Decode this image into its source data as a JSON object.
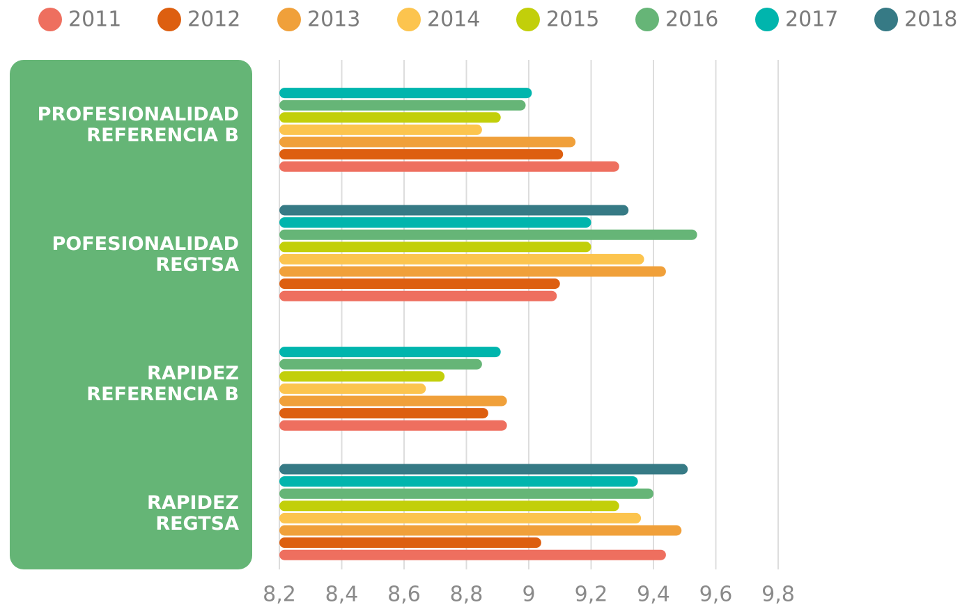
{
  "chart_data": {
    "type": "bar",
    "orientation": "horizontal",
    "categories": [
      "PROFESIONALIDAD\nREFERENCIA B",
      "POFESIONALIDAD\nREGTSA",
      "RAPIDEZ\nREFERENCIA B",
      "RAPIDEZ\nREGTSA"
    ],
    "series": [
      {
        "name": "2011",
        "color": "#ee6f5f",
        "values": [
          9.29,
          9.09,
          8.93,
          9.44
        ]
      },
      {
        "name": "2012",
        "color": "#dd5f10",
        "values": [
          9.11,
          9.1,
          8.87,
          9.04
        ]
      },
      {
        "name": "2013",
        "color": "#f0a03a",
        "values": [
          9.15,
          9.44,
          8.93,
          9.49
        ]
      },
      {
        "name": "2014",
        "color": "#fcc44e",
        "values": [
          8.85,
          9.37,
          8.67,
          9.36
        ]
      },
      {
        "name": "2015",
        "color": "#c2cf0a",
        "values": [
          8.91,
          9.2,
          8.73,
          9.29
        ]
      },
      {
        "name": "2016",
        "color": "#66b577",
        "values": [
          8.99,
          9.54,
          8.85,
          9.4
        ]
      },
      {
        "name": "2017",
        "color": "#00b5ad",
        "values": [
          9.01,
          9.2,
          8.91,
          9.35
        ]
      },
      {
        "name": "2018",
        "color": "#367a85",
        "values": [
          null,
          9.32,
          null,
          9.51
        ]
      }
    ],
    "xlim": [
      8.2,
      9.8
    ],
    "xticks": [
      {
        "value": 8.2,
        "label": "8,2"
      },
      {
        "value": 8.4,
        "label": "8,4"
      },
      {
        "value": 8.6,
        "label": "8,6"
      },
      {
        "value": 8.8,
        "label": "8,8"
      },
      9,
      {
        "value": 9.2,
        "label": "9,2"
      },
      {
        "value": 9.4,
        "label": "9,4"
      },
      {
        "value": 9.6,
        "label": "9,6"
      },
      {
        "value": 9.8,
        "label": "9,8"
      }
    ],
    "grid": true,
    "legend": "top"
  }
}
